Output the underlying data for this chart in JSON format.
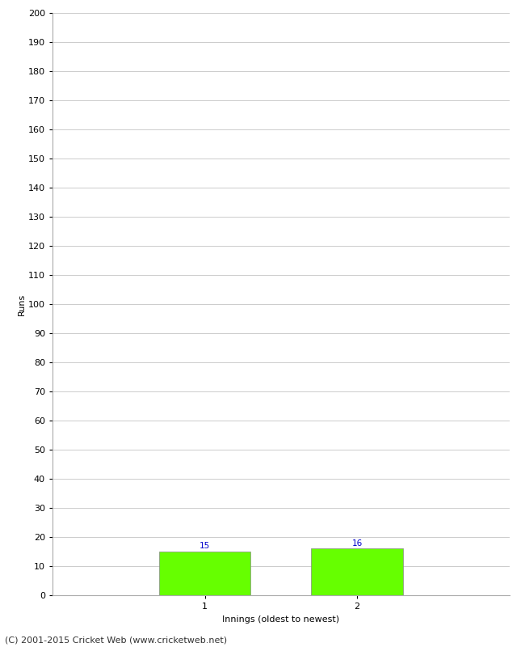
{
  "xlabel": "Innings (oldest to newest)",
  "ylabel": "Runs",
  "categories": [
    "1",
    "2"
  ],
  "values": [
    15,
    16
  ],
  "bar_color": "#66ff00",
  "bar_edgecolor": "#888888",
  "ylim": [
    0,
    200
  ],
  "ytick_step": 10,
  "value_label_color": "#0000cc",
  "value_label_fontsize": 7.5,
  "axis_label_fontsize": 8,
  "tick_label_fontsize": 8,
  "footer_text": "(C) 2001-2015 Cricket Web (www.cricketweb.net)",
  "footer_fontsize": 8,
  "background_color": "#ffffff",
  "grid_color": "#cccccc",
  "bar_width": 0.6,
  "xlim": [
    0,
    3
  ]
}
